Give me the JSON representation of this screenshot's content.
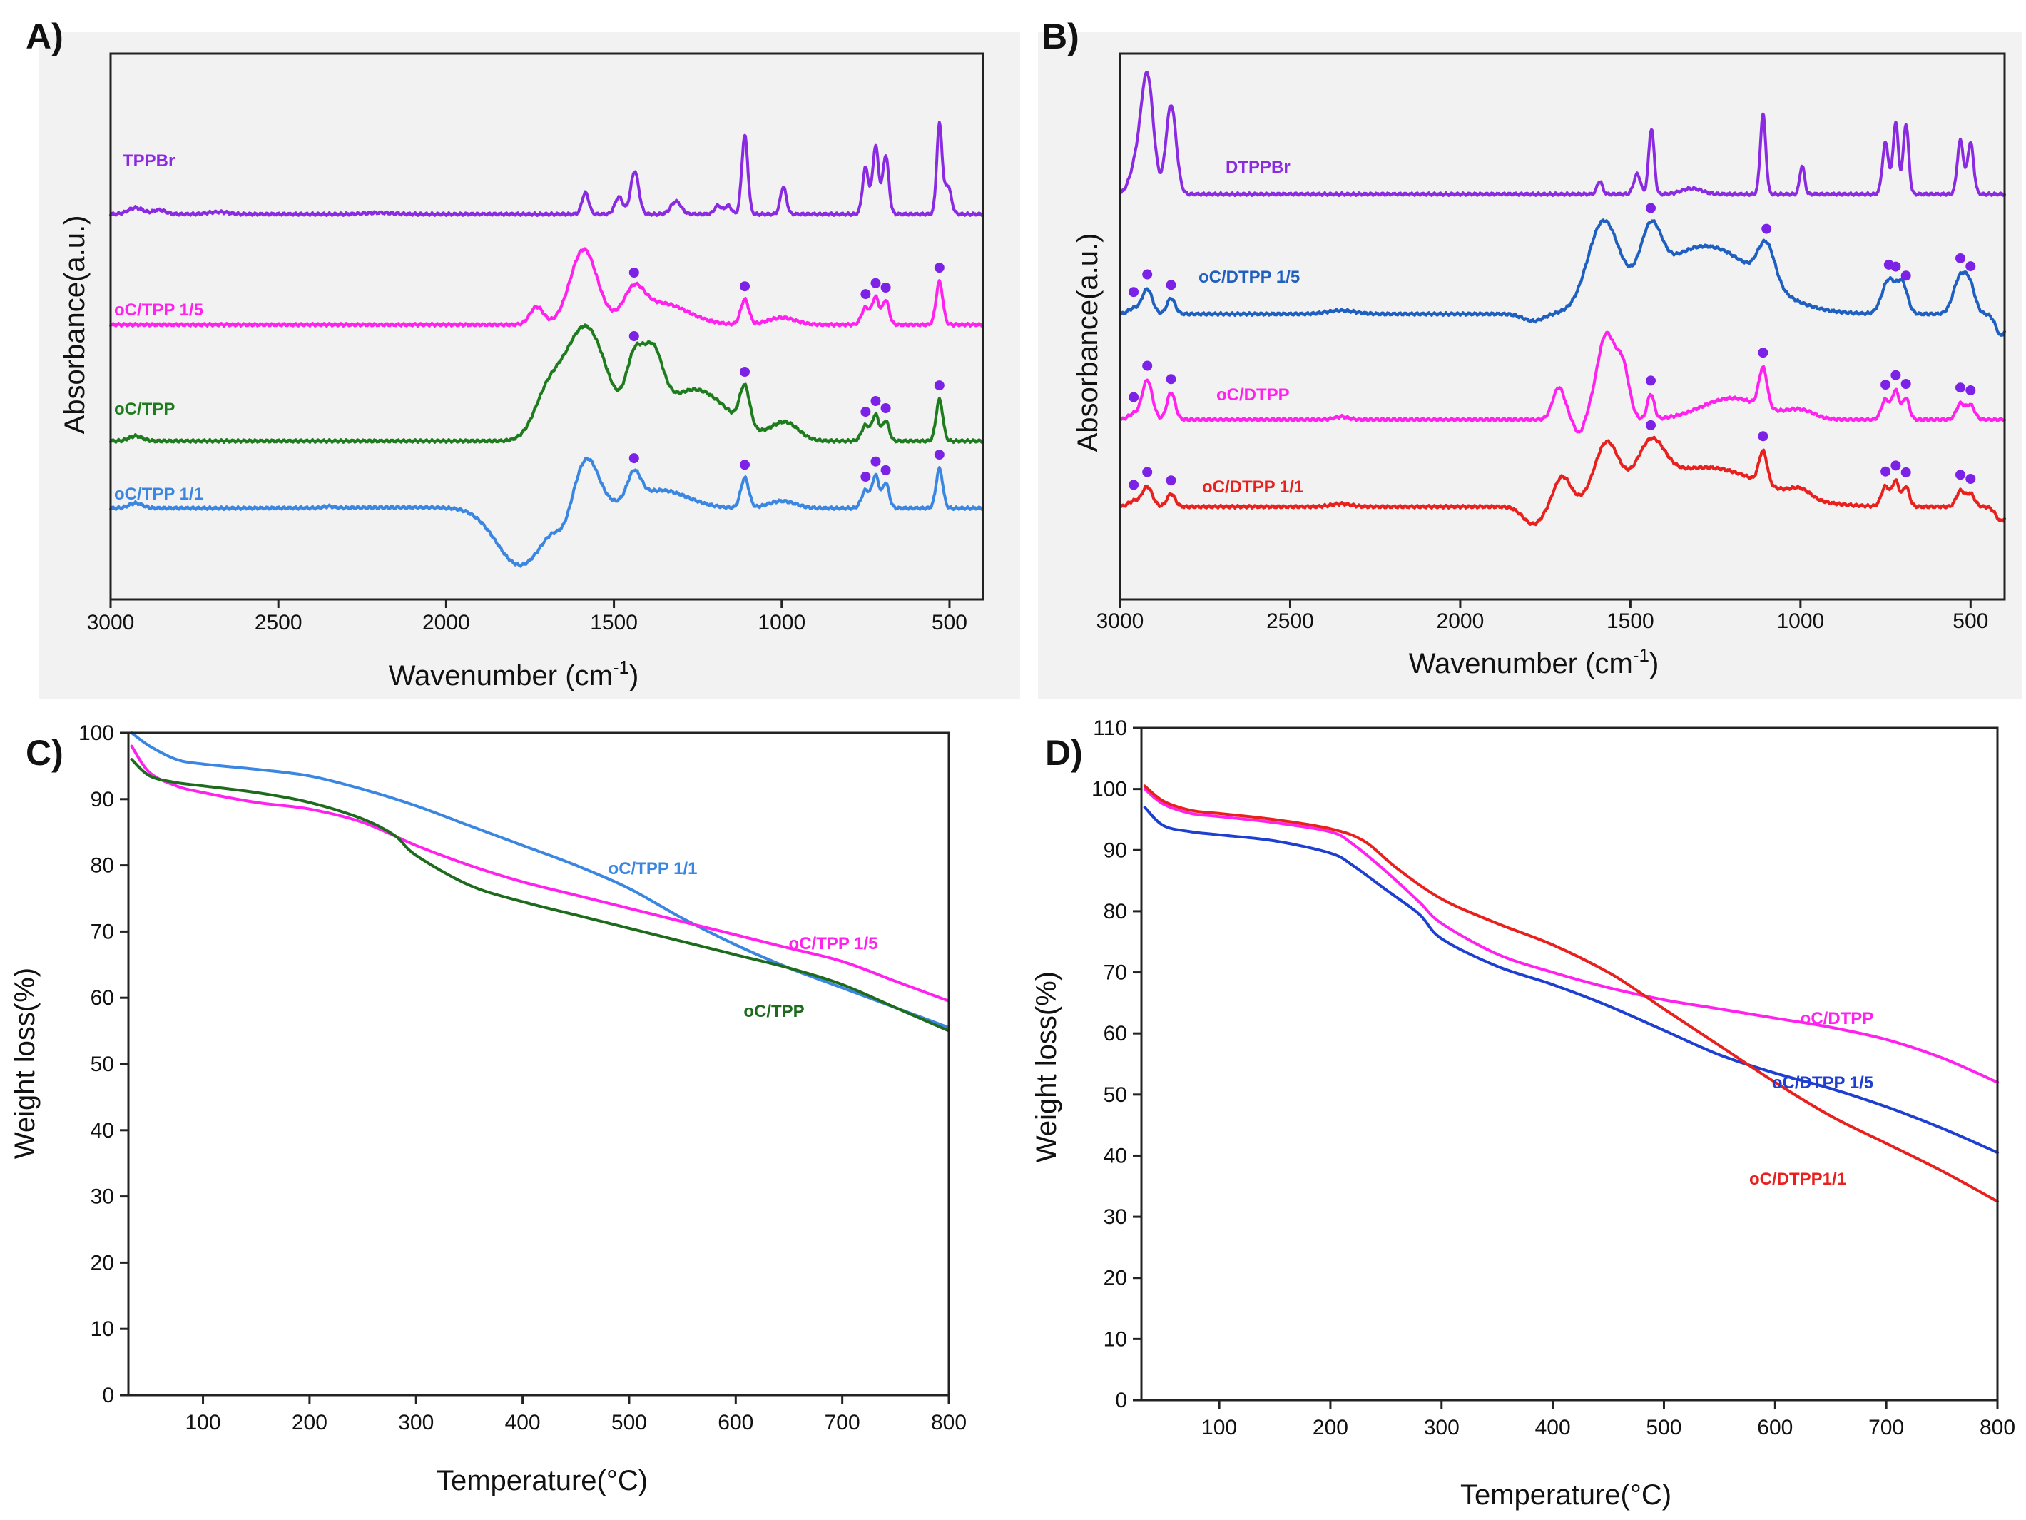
{
  "chart_data": [
    {
      "panel": "A)",
      "type": "line",
      "xlabel": "Wavenumber (cm",
      "xlabel_sup": "-1",
      "xlabel_end": ")",
      "ylabel": "Absorbance(a.u.)",
      "xlim": [
        3000,
        400
      ],
      "xticks": [
        "3000",
        "2500",
        "2000",
        "1500",
        "1000",
        "500"
      ],
      "colors": {
        "TPPBr": "#8a2be2",
        "oC/TPP 1/5": "#ff22ee",
        "oC/TPP": "#1e7b1e",
        "oC/TPP 1/1": "#3a86e0",
        "marker": "#7b22e6"
      },
      "series": [
        {
          "name": "TPPBr",
          "baseline": 0.0,
          "peaks": [
            [
              2925,
              9,
              22
            ],
            [
              2855,
              6,
              18
            ],
            [
              2680,
              3,
              30
            ],
            [
              2200,
              2,
              40
            ],
            [
              1585,
              30,
              10
            ],
            [
              1485,
              24,
              12
            ],
            [
              1438,
              60,
              12
            ],
            [
              1315,
              18,
              15
            ],
            [
              1190,
              12,
              10
            ],
            [
              1160,
              12,
              10
            ],
            [
              1110,
              110,
              9
            ],
            [
              995,
              38,
              9
            ],
            [
              750,
              65,
              9
            ],
            [
              720,
              95,
              9
            ],
            [
              690,
              82,
              9
            ],
            [
              530,
              125,
              8
            ],
            [
              505,
              40,
              10
            ]
          ]
        },
        {
          "name": "oC/TPP 1/5",
          "baseline": 0.0,
          "peaks": [
            [
              1730,
              25,
              20
            ],
            [
              1590,
              105,
              40
            ],
            [
              1440,
              38,
              30
            ],
            [
              1360,
              30,
              80
            ],
            [
              1110,
              35,
              12
            ],
            [
              1000,
              10,
              40
            ],
            [
              750,
              24,
              12
            ],
            [
              720,
              38,
              10
            ],
            [
              690,
              34,
              10
            ],
            [
              530,
              60,
              10
            ]
          ],
          "markers": [
            1440,
            1110,
            750,
            720,
            690,
            530
          ]
        },
        {
          "name": "oC/TPP",
          "baseline": 0.0,
          "peaks": [
            [
              2925,
              7,
              20
            ],
            [
              1700,
              50,
              40
            ],
            [
              1585,
              160,
              65
            ],
            [
              1440,
              85,
              25
            ],
            [
              1385,
              95,
              30
            ],
            [
              1260,
              72,
              100
            ],
            [
              1110,
              55,
              15
            ],
            [
              990,
              25,
              40
            ],
            [
              750,
              22,
              12
            ],
            [
              720,
              36,
              10
            ],
            [
              690,
              28,
              10
            ],
            [
              530,
              58,
              10
            ]
          ],
          "markers": [
            1440,
            1110,
            750,
            720,
            690,
            530
          ]
        },
        {
          "name": "oC/TPP 1/1",
          "baseline": 0.0,
          "peaks": [
            [
              2925,
              7,
              20
            ],
            [
              2350,
              2,
              15
            ],
            [
              2100,
              1,
              200
            ],
            [
              1780,
              -80,
              70
            ],
            [
              1650,
              -18,
              22
            ],
            [
              1580,
              70,
              35
            ],
            [
              1440,
              38,
              20
            ],
            [
              1360,
              25,
              80
            ],
            [
              1110,
              42,
              12
            ],
            [
              1000,
              10,
              40
            ],
            [
              750,
              25,
              12
            ],
            [
              720,
              45,
              10
            ],
            [
              690,
              35,
              10
            ],
            [
              530,
              55,
              10
            ]
          ],
          "markers": [
            1440,
            1110,
            750,
            720,
            690,
            530
          ]
        }
      ]
    },
    {
      "panel": "B)",
      "type": "line",
      "xlabel": "Wavenumber (cm",
      "xlabel_sup": "-1",
      "xlabel_end": ")",
      "ylabel": "Absorbance(a.u.)",
      "xlim": [
        3000,
        400
      ],
      "xticks": [
        "3000",
        "2500",
        "2000",
        "1500",
        "1000",
        "500"
      ],
      "colors": {
        "DTPPBr": "#8a2be2",
        "oC/DTPP 1/5": "#1f5fc0",
        "oC/DTPP": "#ff22ee",
        "oC/DTPP 1/1": "#e8201e",
        "marker": "#7b22e6"
      },
      "series": [
        {
          "name": "DTPPBr",
          "baseline": 0.0,
          "peaks": [
            [
              2955,
              35,
              18
            ],
            [
              2920,
              165,
              18
            ],
            [
              2850,
              125,
              15
            ],
            [
              1590,
              18,
              8
            ],
            [
              1480,
              28,
              10
            ],
            [
              1438,
              92,
              8
            ],
            [
              1320,
              8,
              30
            ],
            [
              1110,
              112,
              8
            ],
            [
              995,
              40,
              7
            ],
            [
              750,
              72,
              9
            ],
            [
              720,
              100,
              8
            ],
            [
              690,
              98,
              8
            ],
            [
              530,
              75,
              9
            ],
            [
              500,
              72,
              9
            ]
          ]
        },
        {
          "name": "oC/DTPP 1/5",
          "baseline": 0.0,
          "peaks": [
            [
              2960,
              8,
              15
            ],
            [
              2920,
              35,
              15
            ],
            [
              2850,
              22,
              12
            ],
            [
              2350,
              5,
              40
            ],
            [
              1785,
              -10,
              30
            ],
            [
              1580,
              118,
              45
            ],
            [
              1440,
              75,
              30
            ],
            [
              1280,
              95,
              150
            ],
            [
              1100,
              55,
              25
            ],
            [
              740,
              48,
              20
            ],
            [
              700,
              40,
              15
            ],
            [
              530,
              52,
              20
            ],
            [
              500,
              30,
              15
            ],
            [
              410,
              -30,
              15
            ]
          ],
          "markers": [
            2960,
            2920,
            2850,
            1440,
            1100,
            740,
            720,
            690,
            530,
            500
          ]
        },
        {
          "name": "oC/DTPP",
          "baseline": 0.0,
          "peaks": [
            [
              2960,
              8,
              15
            ],
            [
              2920,
              55,
              15
            ],
            [
              2850,
              38,
              12
            ],
            [
              2350,
              4,
              20
            ],
            [
              1710,
              45,
              18
            ],
            [
              1650,
              -20,
              14
            ],
            [
              1570,
              120,
              28
            ],
            [
              1520,
              60,
              18
            ],
            [
              1440,
              35,
              10
            ],
            [
              1200,
              30,
              90
            ],
            [
              1110,
              55,
              12
            ],
            [
              1000,
              12,
              40
            ],
            [
              750,
              28,
              12
            ],
            [
              720,
              40,
              10
            ],
            [
              690,
              30,
              10
            ],
            [
              530,
              22,
              12
            ],
            [
              500,
              20,
              12
            ]
          ],
          "markers": [
            2960,
            2920,
            2850,
            1440,
            1110,
            750,
            720,
            690,
            530,
            500
          ]
        },
        {
          "name": "oC/DTPP 1/1",
          "baseline": 0.0,
          "peaks": [
            [
              2960,
              8,
              15
            ],
            [
              2920,
              28,
              15
            ],
            [
              2850,
              18,
              12
            ],
            [
              2350,
              4,
              30
            ],
            [
              1785,
              -25,
              30
            ],
            [
              1700,
              40,
              25
            ],
            [
              1570,
              78,
              35
            ],
            [
              1440,
              60,
              40
            ],
            [
              1280,
              55,
              170
            ],
            [
              1110,
              45,
              12
            ],
            [
              1000,
              12,
              30
            ],
            [
              750,
              28,
              12
            ],
            [
              720,
              35,
              10
            ],
            [
              690,
              28,
              10
            ],
            [
              530,
              22,
              12
            ],
            [
              500,
              18,
              12
            ],
            [
              410,
              -20,
              15
            ]
          ],
          "markers": [
            2960,
            2920,
            2850,
            1440,
            1110,
            750,
            720,
            690,
            530,
            500
          ]
        }
      ]
    },
    {
      "panel": "C)",
      "type": "line",
      "xlabel": "Temperature(°C)",
      "ylabel": "Weight loss(%)",
      "xlim": [
        30,
        800
      ],
      "ylim": [
        0,
        100
      ],
      "xticks": [
        100,
        200,
        300,
        400,
        500,
        600,
        700,
        800
      ],
      "yticks": [
        0,
        10,
        20,
        30,
        40,
        50,
        60,
        70,
        80,
        90,
        100
      ],
      "series": [
        {
          "name": "oC/TPP 1/1",
          "color": "#3a86e0",
          "x": [
            33,
            50,
            75,
            100,
            150,
            200,
            250,
            300,
            350,
            400,
            450,
            500,
            550,
            600,
            650,
            700,
            750,
            800
          ],
          "y": [
            100,
            98,
            96,
            95.3,
            94.5,
            93.5,
            91.5,
            89,
            86,
            83,
            80,
            76.5,
            72,
            68,
            64.5,
            61.5,
            58.5,
            55.5
          ]
        },
        {
          "name": "oC/TPP 1/5",
          "color": "#ff22ee",
          "x": [
            33,
            50,
            75,
            100,
            150,
            200,
            250,
            300,
            350,
            400,
            450,
            500,
            550,
            600,
            650,
            700,
            750,
            800
          ],
          "y": [
            98,
            94,
            92,
            91,
            89.5,
            88.5,
            86.5,
            83,
            80,
            77.5,
            75.5,
            73.5,
            71.5,
            69.5,
            67.5,
            65.5,
            62.5,
            59.5
          ]
        },
        {
          "name": "oC/TPP",
          "color": "#1e6b1e",
          "x": [
            33,
            50,
            75,
            100,
            150,
            200,
            250,
            280,
            300,
            350,
            400,
            450,
            500,
            550,
            600,
            650,
            700,
            750,
            800
          ],
          "y": [
            96,
            93.5,
            92.5,
            92,
            91,
            89.5,
            87,
            84.5,
            81.5,
            77,
            74.5,
            72.5,
            70.5,
            68.5,
            66.5,
            64.5,
            62,
            58.5,
            55
          ]
        }
      ]
    },
    {
      "panel": "D)",
      "type": "line",
      "xlabel": "Temperature(°C)",
      "ylabel": "Weight loss(%)",
      "xlim": [
        30,
        800
      ],
      "ylim": [
        0,
        110
      ],
      "xticks": [
        100,
        200,
        300,
        400,
        500,
        600,
        700,
        800
      ],
      "yticks": [
        0,
        10,
        20,
        30,
        40,
        50,
        60,
        70,
        80,
        90,
        100,
        110
      ],
      "series": [
        {
          "name": "oC/DTPP",
          "color": "#ff22ee",
          "x": [
            33,
            50,
            75,
            100,
            150,
            200,
            220,
            250,
            280,
            300,
            350,
            400,
            450,
            500,
            550,
            600,
            650,
            700,
            750,
            800
          ],
          "y": [
            100,
            97.5,
            96,
            95.5,
            94.5,
            93,
            91,
            86.5,
            81.5,
            78,
            73,
            70,
            67.5,
            65.5,
            64,
            62.5,
            61,
            59,
            56,
            52
          ]
        },
        {
          "name": "oC/DTPP 1/5",
          "color": "#1f3fd0",
          "x": [
            33,
            50,
            75,
            100,
            150,
            200,
            220,
            250,
            280,
            300,
            350,
            400,
            450,
            500,
            550,
            600,
            650,
            700,
            750,
            800
          ],
          "y": [
            97,
            94,
            93,
            92.5,
            91.5,
            89.5,
            87.5,
            83.5,
            79.5,
            75.5,
            71,
            68,
            64.5,
            60.5,
            56.5,
            53.5,
            51,
            48,
            44.5,
            40.5
          ]
        },
        {
          "name": "oC/DTPP1/1",
          "color": "#e8201e",
          "x": [
            33,
            50,
            75,
            100,
            150,
            200,
            230,
            260,
            300,
            350,
            400,
            450,
            480,
            500,
            550,
            600,
            650,
            700,
            750,
            800
          ],
          "y": [
            100.5,
            98,
            96.5,
            96,
            95,
            93.5,
            91.5,
            87,
            82,
            78,
            74.5,
            70,
            66.5,
            64,
            58,
            52,
            46.5,
            42,
            37.5,
            32.5
          ]
        }
      ]
    }
  ],
  "labels": {
    "A": {
      "TPPBr": "TPPBr",
      "oC/TPP 1/5": "oC/TPP 1/5",
      "oC/TPP": "oC/TPP",
      "oC/TPP 1/1": "oC/TPP 1/1"
    },
    "B": {
      "DTPPBr": "DTPPBr",
      "oC/DTPP 1/5": "oC/DTPP 1/5",
      "oC/DTPP": "oC/DTPP",
      "oC/DTPP 1/1": "oC/DTPP 1/1"
    }
  }
}
